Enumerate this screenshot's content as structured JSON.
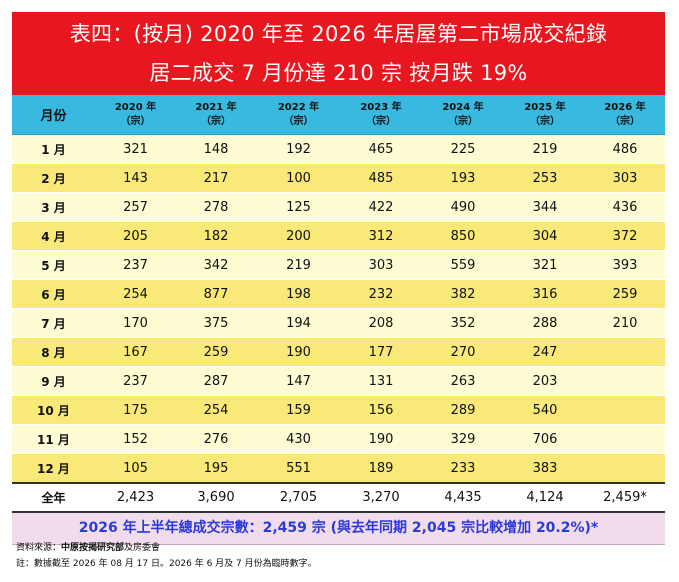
{
  "title_line1": "表四：(按月) 2020 年至 2026 年居屋第二市場成交紀錄",
  "title_line2": "居二成交 7 月份達 210 宗 按月跌 19%",
  "header": {
    "month_label": "月份",
    "years": [
      "2020 年",
      "2021 年",
      "2022 年",
      "2023 年",
      "2024 年",
      "2025 年",
      "2026 年"
    ],
    "unit": "（宗）"
  },
  "rows": [
    {
      "month": "1 月",
      "values": [
        "321",
        "148",
        "192",
        "465",
        "225",
        "219",
        "486"
      ]
    },
    {
      "month": "2 月",
      "values": [
        "143",
        "217",
        "100",
        "485",
        "193",
        "253",
        "303"
      ]
    },
    {
      "month": "3 月",
      "values": [
        "257",
        "278",
        "125",
        "422",
        "490",
        "344",
        "436"
      ]
    },
    {
      "month": "4 月",
      "values": [
        "205",
        "182",
        "200",
        "312",
        "850",
        "304",
        "372"
      ]
    },
    {
      "month": "5 月",
      "values": [
        "237",
        "342",
        "219",
        "303",
        "559",
        "321",
        "393"
      ]
    },
    {
      "month": "6 月",
      "values": [
        "254",
        "877",
        "198",
        "232",
        "382",
        "316",
        "259"
      ]
    },
    {
      "month": "7 月",
      "values": [
        "170",
        "375",
        "194",
        "208",
        "352",
        "288",
        "210"
      ]
    },
    {
      "month": "8 月",
      "values": [
        "167",
        "259",
        "190",
        "177",
        "270",
        "247",
        ""
      ]
    },
    {
      "month": "9 月",
      "values": [
        "237",
        "287",
        "147",
        "131",
        "263",
        "203",
        ""
      ]
    },
    {
      "month": "10 月",
      "values": [
        "175",
        "254",
        "159",
        "156",
        "289",
        "540",
        ""
      ]
    },
    {
      "month": "11 月",
      "values": [
        "152",
        "276",
        "430",
        "190",
        "329",
        "706",
        ""
      ]
    },
    {
      "month": "12 月",
      "values": [
        "105",
        "195",
        "551",
        "189",
        "233",
        "383",
        ""
      ]
    }
  ],
  "total": {
    "label": "全年",
    "values": [
      "2,423",
      "3,690",
      "2,705",
      "3,270",
      "4,435",
      "4,124",
      "2,459*"
    ]
  },
  "summary": "2026 年上半年總成交宗數：2,459 宗 (與去年同期 2,045 宗比較增加 20.2%)*",
  "source_prefix": "資料來源：",
  "source_bold": "中原按揭研究部",
  "source_suffix": "及房委會",
  "note": "註：數據截至 2026 年 08 月 17 日。2026 年 6 月及 7 月份為臨時數字。",
  "colors": {
    "banner": "#e8171f",
    "header": "#37b9e0",
    "row_light": "#fdfcd3",
    "row_dark": "#f8e979",
    "summary_bg": "#f1dcec",
    "summary_text": "#2b3bd4"
  }
}
